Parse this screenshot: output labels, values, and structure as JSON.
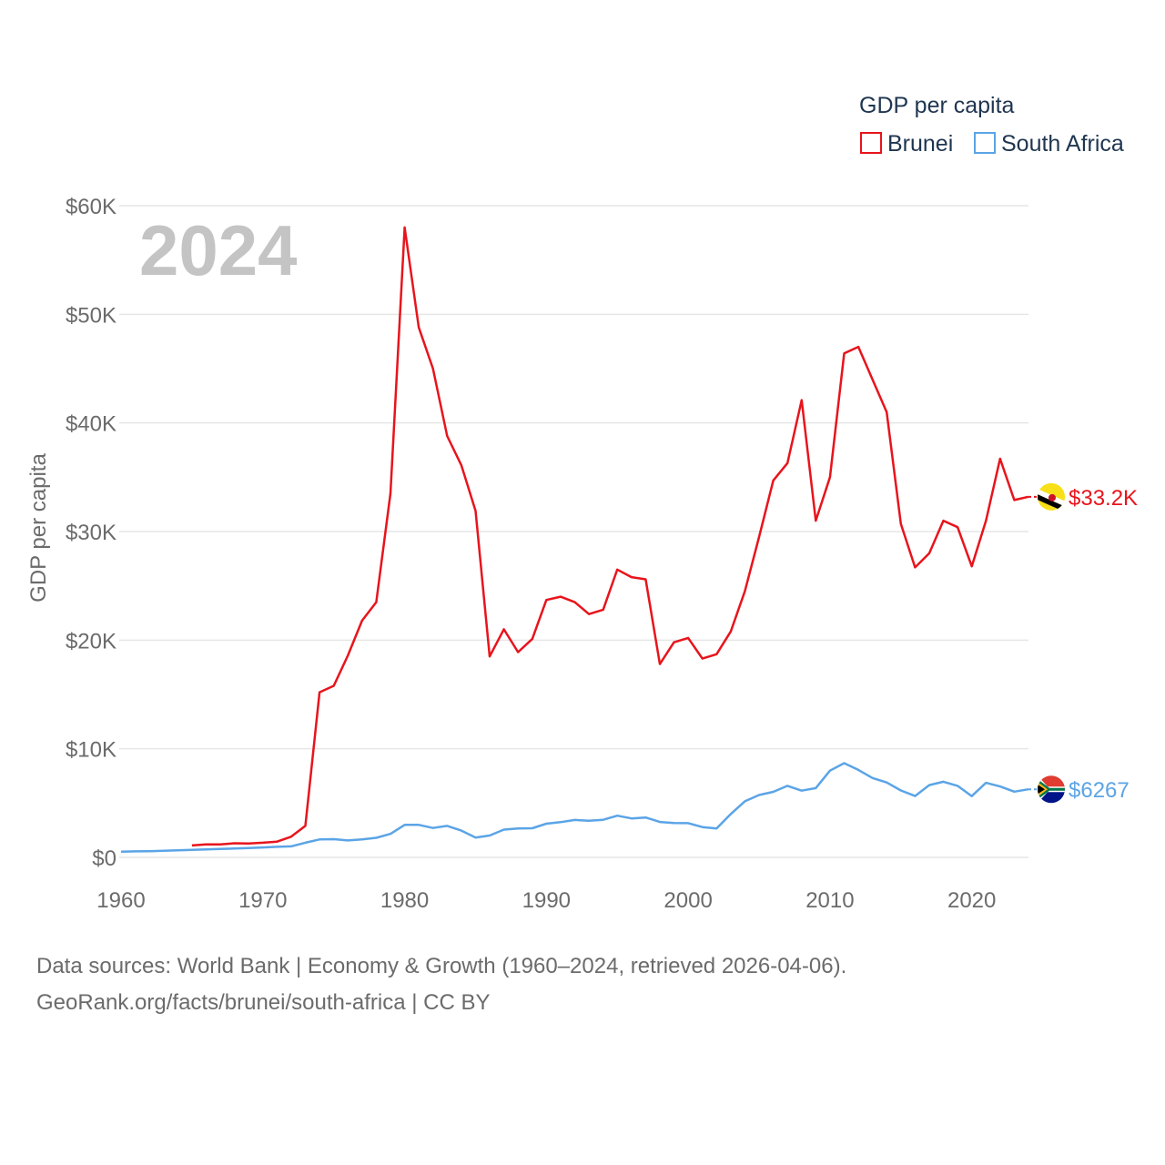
{
  "chart_data": {
    "type": "line",
    "title": "GDP per capita",
    "ylabel": "GDP per capita",
    "xlabel": "",
    "year_watermark": "2024",
    "xlim": [
      1960,
      2024
    ],
    "ylim": [
      0,
      60000
    ],
    "x_ticks": [
      {
        "value": 1960,
        "label": "1960"
      },
      {
        "value": 1970,
        "label": "1970"
      },
      {
        "value": 1980,
        "label": "1980"
      },
      {
        "value": 1990,
        "label": "1990"
      },
      {
        "value": 2000,
        "label": "2000"
      },
      {
        "value": 2010,
        "label": "2010"
      },
      {
        "value": 2020,
        "label": "2020"
      }
    ],
    "y_ticks": [
      {
        "value": 0,
        "label": "$0"
      },
      {
        "value": 10000,
        "label": "$10K"
      },
      {
        "value": 20000,
        "label": "$20K"
      },
      {
        "value": 30000,
        "label": "$30K"
      },
      {
        "value": 40000,
        "label": "$40K"
      },
      {
        "value": 50000,
        "label": "$50K"
      },
      {
        "value": 60000,
        "label": "$60K"
      }
    ],
    "legend": {
      "title": "GDP per capita",
      "position": "top-right"
    },
    "series": [
      {
        "name": "Brunei",
        "color": "#e8141c",
        "end_label": "$33.2K",
        "flag": "brunei",
        "start_year": 1965,
        "values": [
          1100,
          1200,
          1200,
          1300,
          1280,
          1350,
          1450,
          1900,
          2900,
          15200,
          15800,
          18600,
          21800,
          23500,
          33500,
          58000,
          48800,
          45000,
          38800,
          36100,
          31900,
          18500,
          21000,
          18900,
          20100,
          23700,
          24000,
          23500,
          22400,
          22800,
          26500,
          25800,
          25600,
          17800,
          19800,
          20200,
          18300,
          18700,
          20800,
          24500,
          29500,
          34700,
          36300,
          42100,
          31000,
          35000,
          46400,
          47000,
          44000,
          41000,
          30700,
          26700,
          28000,
          31000,
          30400,
          26800,
          31000,
          36700,
          32900,
          33200
        ]
      },
      {
        "name": "South Africa",
        "color": "#5ba4e6",
        "end_label": "$6267",
        "flag": "south-africa",
        "start_year": 1960,
        "values": [
          530,
          550,
          570,
          610,
          650,
          690,
          730,
          770,
          810,
          860,
          910,
          970,
          1010,
          1350,
          1650,
          1680,
          1560,
          1660,
          1800,
          2160,
          2990,
          2990,
          2710,
          2900,
          2460,
          1830,
          2010,
          2560,
          2660,
          2680,
          3100,
          3240,
          3440,
          3380,
          3460,
          3840,
          3590,
          3670,
          3260,
          3170,
          3150,
          2790,
          2660,
          3990,
          5160,
          5740,
          6030,
          6590,
          6140,
          6380,
          7990,
          8670,
          8050,
          7310,
          6900,
          6160,
          5650,
          6650,
          6960,
          6590,
          5640,
          6860,
          6530,
          6050,
          6267
        ]
      }
    ]
  },
  "footer": {
    "line1": "Data sources: World Bank | Economy & Growth (1960–2024, retrieved 2026-04-06).",
    "line2": "GeoRank.org/facts/brunei/south-africa | CC BY"
  }
}
